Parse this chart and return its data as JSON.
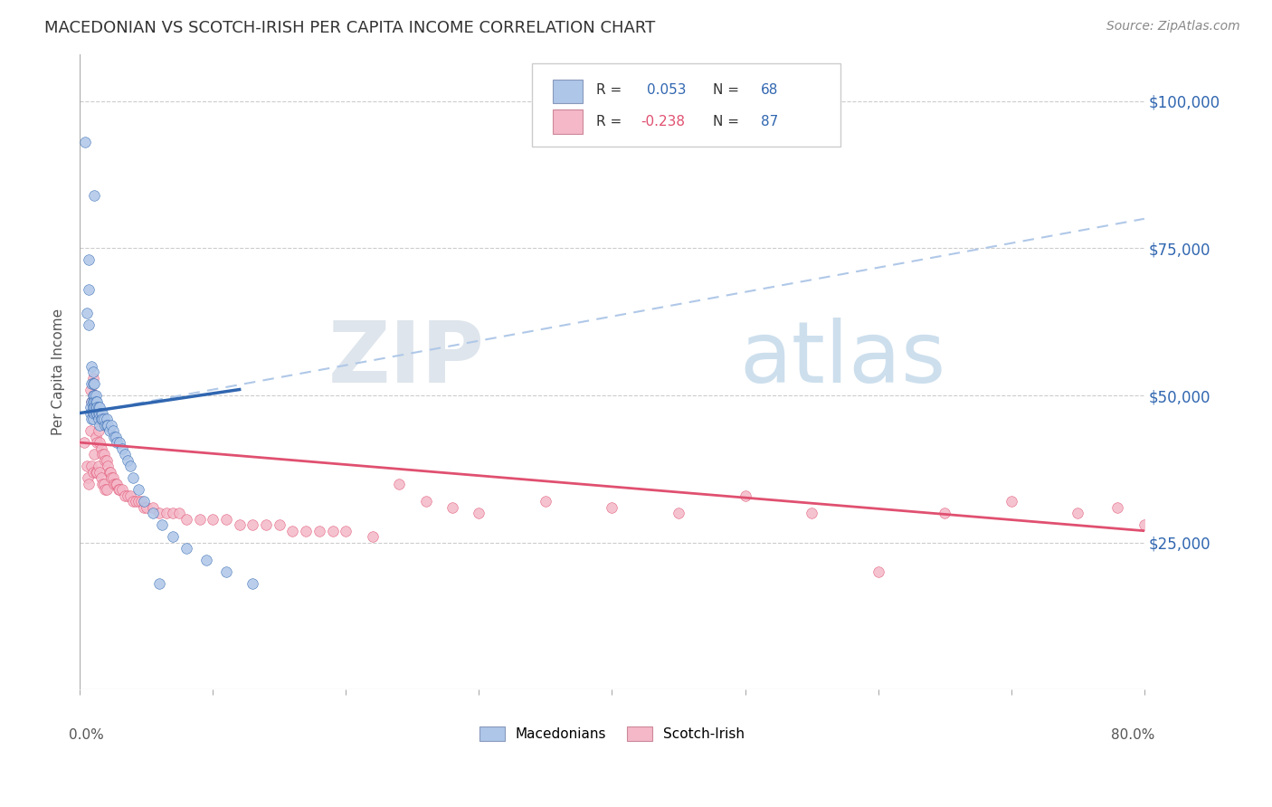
{
  "title": "MACEDONIAN VS SCOTCH-IRISH PER CAPITA INCOME CORRELATION CHART",
  "source": "Source: ZipAtlas.com",
  "ylabel": "Per Capita Income",
  "ytick_labels": [
    "$25,000",
    "$50,000",
    "$75,000",
    "$100,000"
  ],
  "ytick_values": [
    25000,
    50000,
    75000,
    100000
  ],
  "ylim": [
    0,
    108000
  ],
  "xlim": [
    0.0,
    0.8
  ],
  "watermark_zip": "ZIP",
  "watermark_atlas": "atlas",
  "macedonian_color": "#aec6e8",
  "scotch_irish_color": "#f4b8c8",
  "blue_line_color": "#3066b0",
  "pink_line_color": "#e05070",
  "dashed_line_color": "#b0c8e8",
  "mac_line_x0": 0.0,
  "mac_line_x1": 0.12,
  "mac_line_y0": 47000,
  "mac_line_y1": 51000,
  "dash_line_x0": 0.04,
  "dash_line_x1": 0.8,
  "dash_line_y0": 48500,
  "dash_line_y1": 80000,
  "si_line_x0": 0.0,
  "si_line_x1": 0.8,
  "si_line_y0": 42000,
  "si_line_y1": 27000,
  "mac_scatter_x": [
    0.004,
    0.011,
    0.007,
    0.007,
    0.008,
    0.008,
    0.009,
    0.009,
    0.009,
    0.009,
    0.01,
    0.01,
    0.01,
    0.01,
    0.01,
    0.01,
    0.01,
    0.011,
    0.011,
    0.011,
    0.011,
    0.011,
    0.012,
    0.012,
    0.012,
    0.012,
    0.013,
    0.013,
    0.013,
    0.014,
    0.014,
    0.014,
    0.015,
    0.015,
    0.015,
    0.016,
    0.016,
    0.017,
    0.017,
    0.018,
    0.019,
    0.02,
    0.02,
    0.021,
    0.022,
    0.024,
    0.025,
    0.026,
    0.027,
    0.028,
    0.03,
    0.032,
    0.034,
    0.036,
    0.038,
    0.04,
    0.044,
    0.048,
    0.055,
    0.062,
    0.07,
    0.08,
    0.095,
    0.11,
    0.13,
    0.007,
    0.005,
    0.06
  ],
  "mac_scatter_y": [
    93000,
    84000,
    68000,
    62000,
    48000,
    47000,
    55000,
    52000,
    49000,
    46000,
    54000,
    52000,
    50000,
    49000,
    48000,
    47000,
    46000,
    52000,
    50000,
    49000,
    48000,
    47000,
    50000,
    49000,
    48000,
    47000,
    49000,
    48000,
    47000,
    48000,
    47000,
    46000,
    48000,
    47000,
    45000,
    47000,
    46000,
    47000,
    46000,
    46000,
    45000,
    46000,
    45000,
    45000,
    44000,
    45000,
    44000,
    43000,
    43000,
    42000,
    42000,
    41000,
    40000,
    39000,
    38000,
    36000,
    34000,
    32000,
    30000,
    28000,
    26000,
    24000,
    22000,
    20000,
    18000,
    73000,
    64000,
    18000
  ],
  "si_scatter_x": [
    0.003,
    0.005,
    0.006,
    0.007,
    0.008,
    0.008,
    0.009,
    0.009,
    0.01,
    0.01,
    0.01,
    0.011,
    0.011,
    0.012,
    0.012,
    0.012,
    0.013,
    0.013,
    0.013,
    0.014,
    0.014,
    0.015,
    0.015,
    0.016,
    0.016,
    0.017,
    0.017,
    0.018,
    0.018,
    0.019,
    0.019,
    0.02,
    0.02,
    0.021,
    0.022,
    0.023,
    0.024,
    0.025,
    0.026,
    0.027,
    0.028,
    0.029,
    0.03,
    0.032,
    0.034,
    0.036,
    0.038,
    0.04,
    0.042,
    0.044,
    0.046,
    0.048,
    0.05,
    0.055,
    0.06,
    0.065,
    0.07,
    0.075,
    0.08,
    0.09,
    0.1,
    0.11,
    0.12,
    0.13,
    0.14,
    0.15,
    0.16,
    0.17,
    0.18,
    0.19,
    0.2,
    0.22,
    0.24,
    0.26,
    0.28,
    0.3,
    0.35,
    0.4,
    0.45,
    0.5,
    0.55,
    0.6,
    0.65,
    0.7,
    0.75,
    0.78,
    0.8
  ],
  "si_scatter_y": [
    42000,
    38000,
    36000,
    35000,
    51000,
    44000,
    49000,
    38000,
    53000,
    47000,
    37000,
    50000,
    40000,
    48000,
    43000,
    37000,
    46000,
    42000,
    37000,
    44000,
    38000,
    42000,
    37000,
    41000,
    36000,
    40000,
    35000,
    40000,
    35000,
    39000,
    34000,
    39000,
    34000,
    38000,
    37000,
    37000,
    36000,
    36000,
    35000,
    35000,
    35000,
    34000,
    34000,
    34000,
    33000,
    33000,
    33000,
    32000,
    32000,
    32000,
    32000,
    31000,
    31000,
    31000,
    30000,
    30000,
    30000,
    30000,
    29000,
    29000,
    29000,
    29000,
    28000,
    28000,
    28000,
    28000,
    27000,
    27000,
    27000,
    27000,
    27000,
    26000,
    35000,
    32000,
    31000,
    30000,
    32000,
    31000,
    30000,
    33000,
    30000,
    20000,
    30000,
    32000,
    30000,
    31000,
    28000
  ]
}
